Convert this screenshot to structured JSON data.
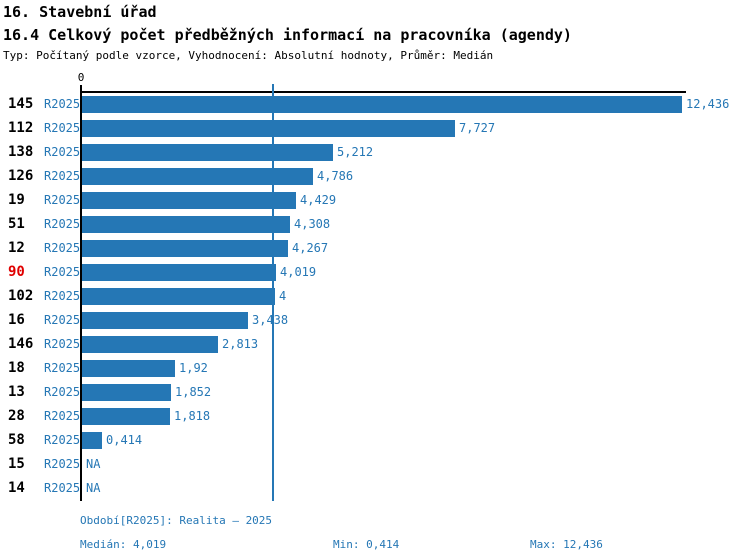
{
  "page": {
    "title": "16. Stavební úřad",
    "subtitle": "16.4 Celkový počet předběžných informací na pracovníka (agendy)",
    "meta": "Typ: Počítaný podle vzorce, Vyhodnocení: Absolutní hodnoty, Průměr: Medián"
  },
  "colors": {
    "bar_blue": "#2577b5",
    "text_blue": "#2577b5",
    "highlight_red": "#e00000",
    "axis_black": "#000000"
  },
  "chart_data": {
    "type": "bar",
    "orientation": "horizontal",
    "title": "16.4 Celkový počet předběžných informací na pracovníka (agendy)",
    "x_axis": {
      "zero_label": "0",
      "min": 0,
      "max": 12.436
    },
    "grid": "off",
    "median": {
      "value": 4.019,
      "label": "4,019"
    },
    "series_period": "R2025",
    "rows": [
      {
        "id": "145",
        "period": "R2025",
        "value": 12.436,
        "value_label": "12,436",
        "highlight": false
      },
      {
        "id": "112",
        "period": "R2025",
        "value": 7.727,
        "value_label": "7,727",
        "highlight": false
      },
      {
        "id": "138",
        "period": "R2025",
        "value": 5.212,
        "value_label": "5,212",
        "highlight": false
      },
      {
        "id": "126",
        "period": "R2025",
        "value": 4.786,
        "value_label": "4,786",
        "highlight": false
      },
      {
        "id": "19",
        "period": "R2025",
        "value": 4.429,
        "value_label": "4,429",
        "highlight": false
      },
      {
        "id": "51",
        "period": "R2025",
        "value": 4.308,
        "value_label": "4,308",
        "highlight": false
      },
      {
        "id": "12",
        "period": "R2025",
        "value": 4.267,
        "value_label": "4,267",
        "highlight": false
      },
      {
        "id": "90",
        "period": "R2025",
        "value": 4.019,
        "value_label": "4,019",
        "highlight": true
      },
      {
        "id": "102",
        "period": "R2025",
        "value": 4.0,
        "value_label": "4",
        "highlight": false
      },
      {
        "id": "16",
        "period": "R2025",
        "value": 3.438,
        "value_label": "3,438",
        "highlight": false
      },
      {
        "id": "146",
        "period": "R2025",
        "value": 2.813,
        "value_label": "2,813",
        "highlight": false
      },
      {
        "id": "18",
        "period": "R2025",
        "value": 1.92,
        "value_label": "1,92",
        "highlight": false
      },
      {
        "id": "13",
        "period": "R2025",
        "value": 1.852,
        "value_label": "1,852",
        "highlight": false
      },
      {
        "id": "28",
        "period": "R2025",
        "value": 1.818,
        "value_label": "1,818",
        "highlight": false
      },
      {
        "id": "58",
        "period": "R2025",
        "value": 0.414,
        "value_label": "0,414",
        "highlight": false
      },
      {
        "id": "15",
        "period": "R2025",
        "value": null,
        "value_label": "NA",
        "highlight": false
      },
      {
        "id": "14",
        "period": "R2025",
        "value": null,
        "value_label": "NA",
        "highlight": false
      }
    ]
  },
  "footer": {
    "period_line": "Období[R2025]: Realita – 2025",
    "median_line": "Medián: 4,019",
    "min_line": "Min: 0,414",
    "max_line": "Max: 12,436"
  }
}
